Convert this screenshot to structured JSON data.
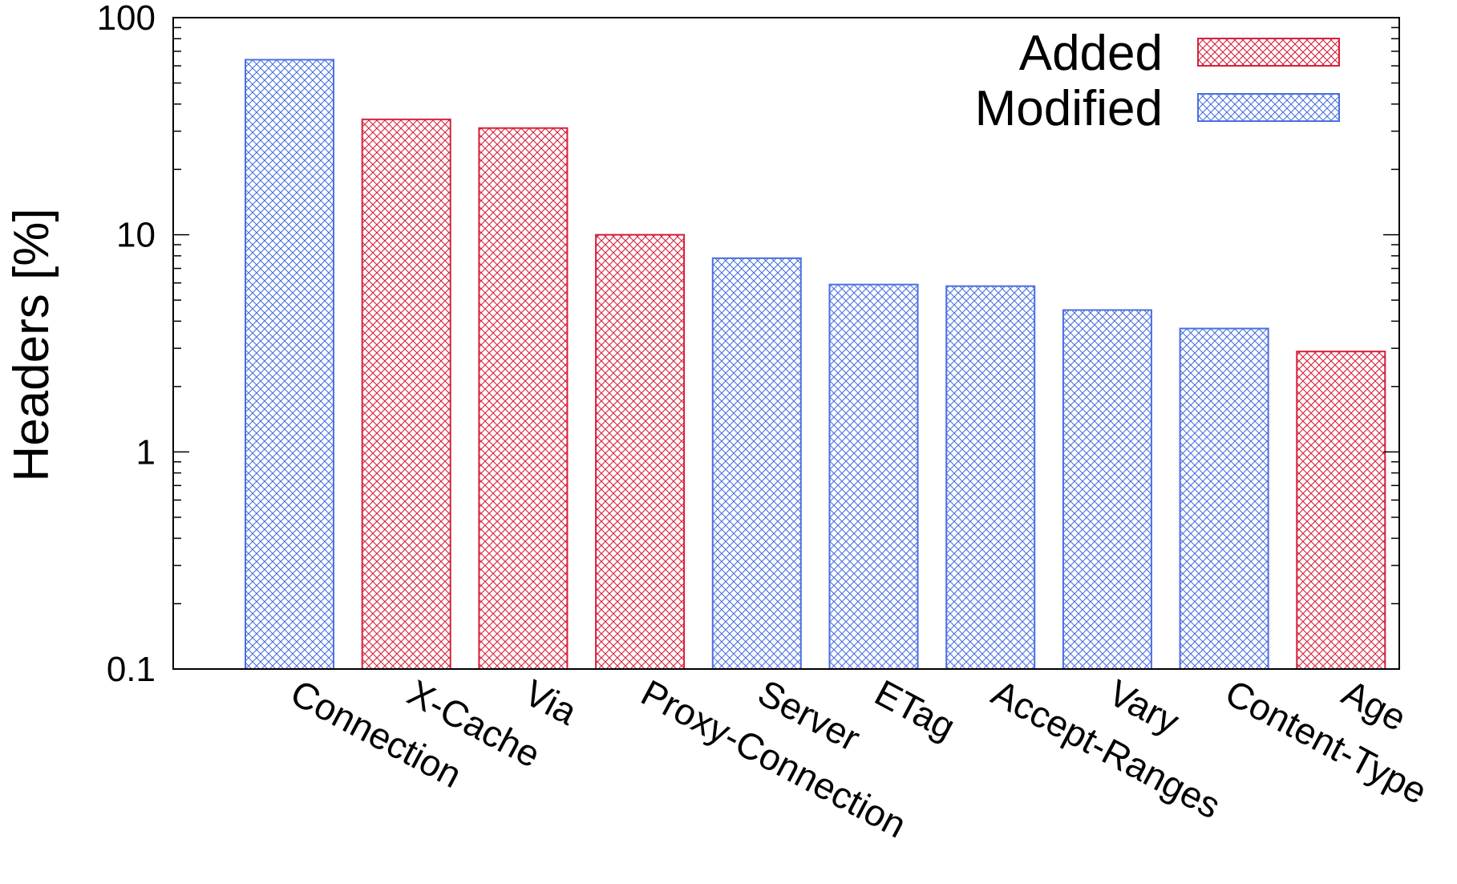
{
  "chart_data": {
    "type": "bar",
    "ylabel": "Headers [%]",
    "yscale": "log",
    "ylim": [
      0.1,
      100
    ],
    "yticks": [
      {
        "value": 0.1,
        "label": "0.1"
      },
      {
        "value": 1,
        "label": "1"
      },
      {
        "value": 10,
        "label": "10"
      },
      {
        "value": 100,
        "label": "100"
      }
    ],
    "categories": [
      "Connection",
      "X-Cache",
      "Via",
      "Proxy-Connection",
      "Server",
      "ETag",
      "Accept-Ranges",
      "Vary",
      "Content-Type",
      "Age"
    ],
    "values": [
      64,
      34,
      31,
      10,
      7.8,
      5.9,
      5.8,
      4.5,
      3.7,
      2.9
    ],
    "types": [
      "Modified",
      "Added",
      "Added",
      "Added",
      "Modified",
      "Modified",
      "Modified",
      "Modified",
      "Modified",
      "Added"
    ],
    "legend": {
      "position": "top-right",
      "entries": [
        {
          "name": "Added",
          "color": "#d6203a"
        },
        {
          "name": "Modified",
          "color": "#4a6fe0"
        }
      ]
    },
    "grid": false
  }
}
